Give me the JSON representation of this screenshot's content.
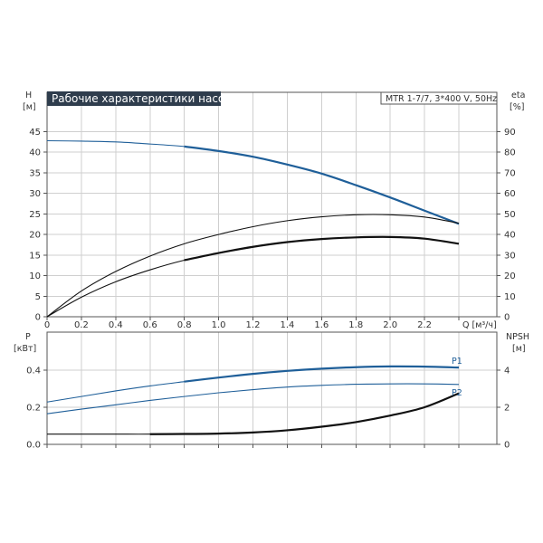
{
  "chart_data": [
    {
      "type": "line",
      "title": "Рабочие характеристики насоса",
      "model_label": "MTR 1-7/7, 3*400 V, 50Hz",
      "x_axis": {
        "label": "Q [м³/ч]",
        "range": [
          0,
          2.6
        ],
        "ticks": [
          0,
          0.2,
          0.4,
          0.6,
          0.8,
          1.0,
          1.2,
          1.4,
          1.6,
          1.8,
          2.0,
          2.2
        ],
        "tick_labels": [
          "0",
          "0.2",
          "0.4",
          "0.6",
          "0.8",
          "1.0",
          "1.2",
          "1.4",
          "1.6",
          "1.8",
          "2.0",
          "2.2"
        ]
      },
      "y_left": {
        "label_top": "H",
        "label_unit": "[м]",
        "range": [
          0,
          50
        ],
        "ticks": [
          0,
          5,
          10,
          15,
          20,
          25,
          30,
          35,
          40,
          45
        ]
      },
      "y_right": {
        "label_top": "eta",
        "label_unit": "[%]",
        "range": [
          0,
          100
        ],
        "ticks": [
          0,
          10,
          20,
          30,
          40,
          50,
          60,
          70,
          80,
          90
        ]
      },
      "grid": true,
      "series": [
        {
          "axis": "left",
          "color": "#1f5f99",
          "x": [
            0,
            0.2,
            0.4,
            0.6,
            0.8,
            1.0,
            1.2,
            1.4,
            1.6,
            1.8,
            2.0,
            2.2,
            2.4
          ],
          "y": [
            42.8,
            42.7,
            42.5,
            42.0,
            41.4,
            40.3,
            38.9,
            37.0,
            34.8,
            32.0,
            29.0,
            25.8,
            22.6
          ]
        },
        {
          "axis": "right",
          "color": "#111111",
          "x": [
            0,
            0.2,
            0.4,
            0.6,
            0.8,
            1.0,
            1.2,
            1.4,
            1.6,
            1.8,
            2.0,
            2.2,
            2.4
          ],
          "y": [
            0,
            12.5,
            22.0,
            29.5,
            35.5,
            40.0,
            43.8,
            46.7,
            48.6,
            49.6,
            49.6,
            48.5,
            45.5
          ]
        },
        {
          "axis": "right",
          "color": "#111111",
          "x": [
            0,
            0.2,
            0.4,
            0.6,
            0.8,
            1.0,
            1.2,
            1.4,
            1.6,
            1.8,
            2.0,
            2.2,
            2.4
          ],
          "y": [
            0,
            9.5,
            17.0,
            22.8,
            27.5,
            31.0,
            34.0,
            36.3,
            37.8,
            38.6,
            38.8,
            38.0,
            35.5
          ]
        }
      ]
    },
    {
      "type": "line",
      "x_axis": {
        "label": "",
        "range": [
          0,
          2.6
        ],
        "ticks": [
          0,
          0.2,
          0.4,
          0.6,
          0.8,
          1.0,
          1.2,
          1.4,
          1.6,
          1.8,
          2.0,
          2.2
        ]
      },
      "y_left": {
        "label_top": "P",
        "label_unit": "[кВт]",
        "range": [
          0,
          0.5
        ],
        "ticks": [
          0.0,
          0.2,
          0.4
        ],
        "tick_labels": [
          "0.0",
          "0.2",
          "0.4"
        ]
      },
      "y_right": {
        "label_top": "NPSH",
        "label_unit": "[м]",
        "range": [
          0,
          5
        ],
        "ticks": [
          0,
          2,
          4
        ]
      },
      "grid": true,
      "series": [
        {
          "name": "P1",
          "axis": "left",
          "color": "#1f5f99",
          "x": [
            0,
            0.2,
            0.4,
            0.6,
            0.8,
            1.0,
            1.2,
            1.4,
            1.6,
            1.8,
            2.0,
            2.2,
            2.4
          ],
          "y": [
            0.228,
            0.258,
            0.288,
            0.315,
            0.338,
            0.36,
            0.38,
            0.396,
            0.408,
            0.416,
            0.42,
            0.419,
            0.414
          ]
        },
        {
          "name": "P2",
          "axis": "left",
          "color": "#1f5f99",
          "x": [
            0,
            0.2,
            0.4,
            0.6,
            0.8,
            1.0,
            1.2,
            1.4,
            1.6,
            1.8,
            2.0,
            2.2,
            2.4
          ],
          "y": [
            0.165,
            0.19,
            0.213,
            0.237,
            0.258,
            0.278,
            0.295,
            0.309,
            0.318,
            0.324,
            0.326,
            0.326,
            0.323
          ]
        },
        {
          "axis": "right",
          "color": "#111111",
          "x": [
            0,
            0.2,
            0.4,
            0.6,
            0.8,
            1.0,
            1.2,
            1.4,
            1.6,
            1.8,
            2.0,
            2.2,
            2.4
          ],
          "y": [
            0.55,
            0.55,
            0.55,
            0.55,
            0.56,
            0.58,
            0.64,
            0.76,
            0.95,
            1.2,
            1.55,
            2.0,
            2.75
          ]
        }
      ]
    }
  ]
}
